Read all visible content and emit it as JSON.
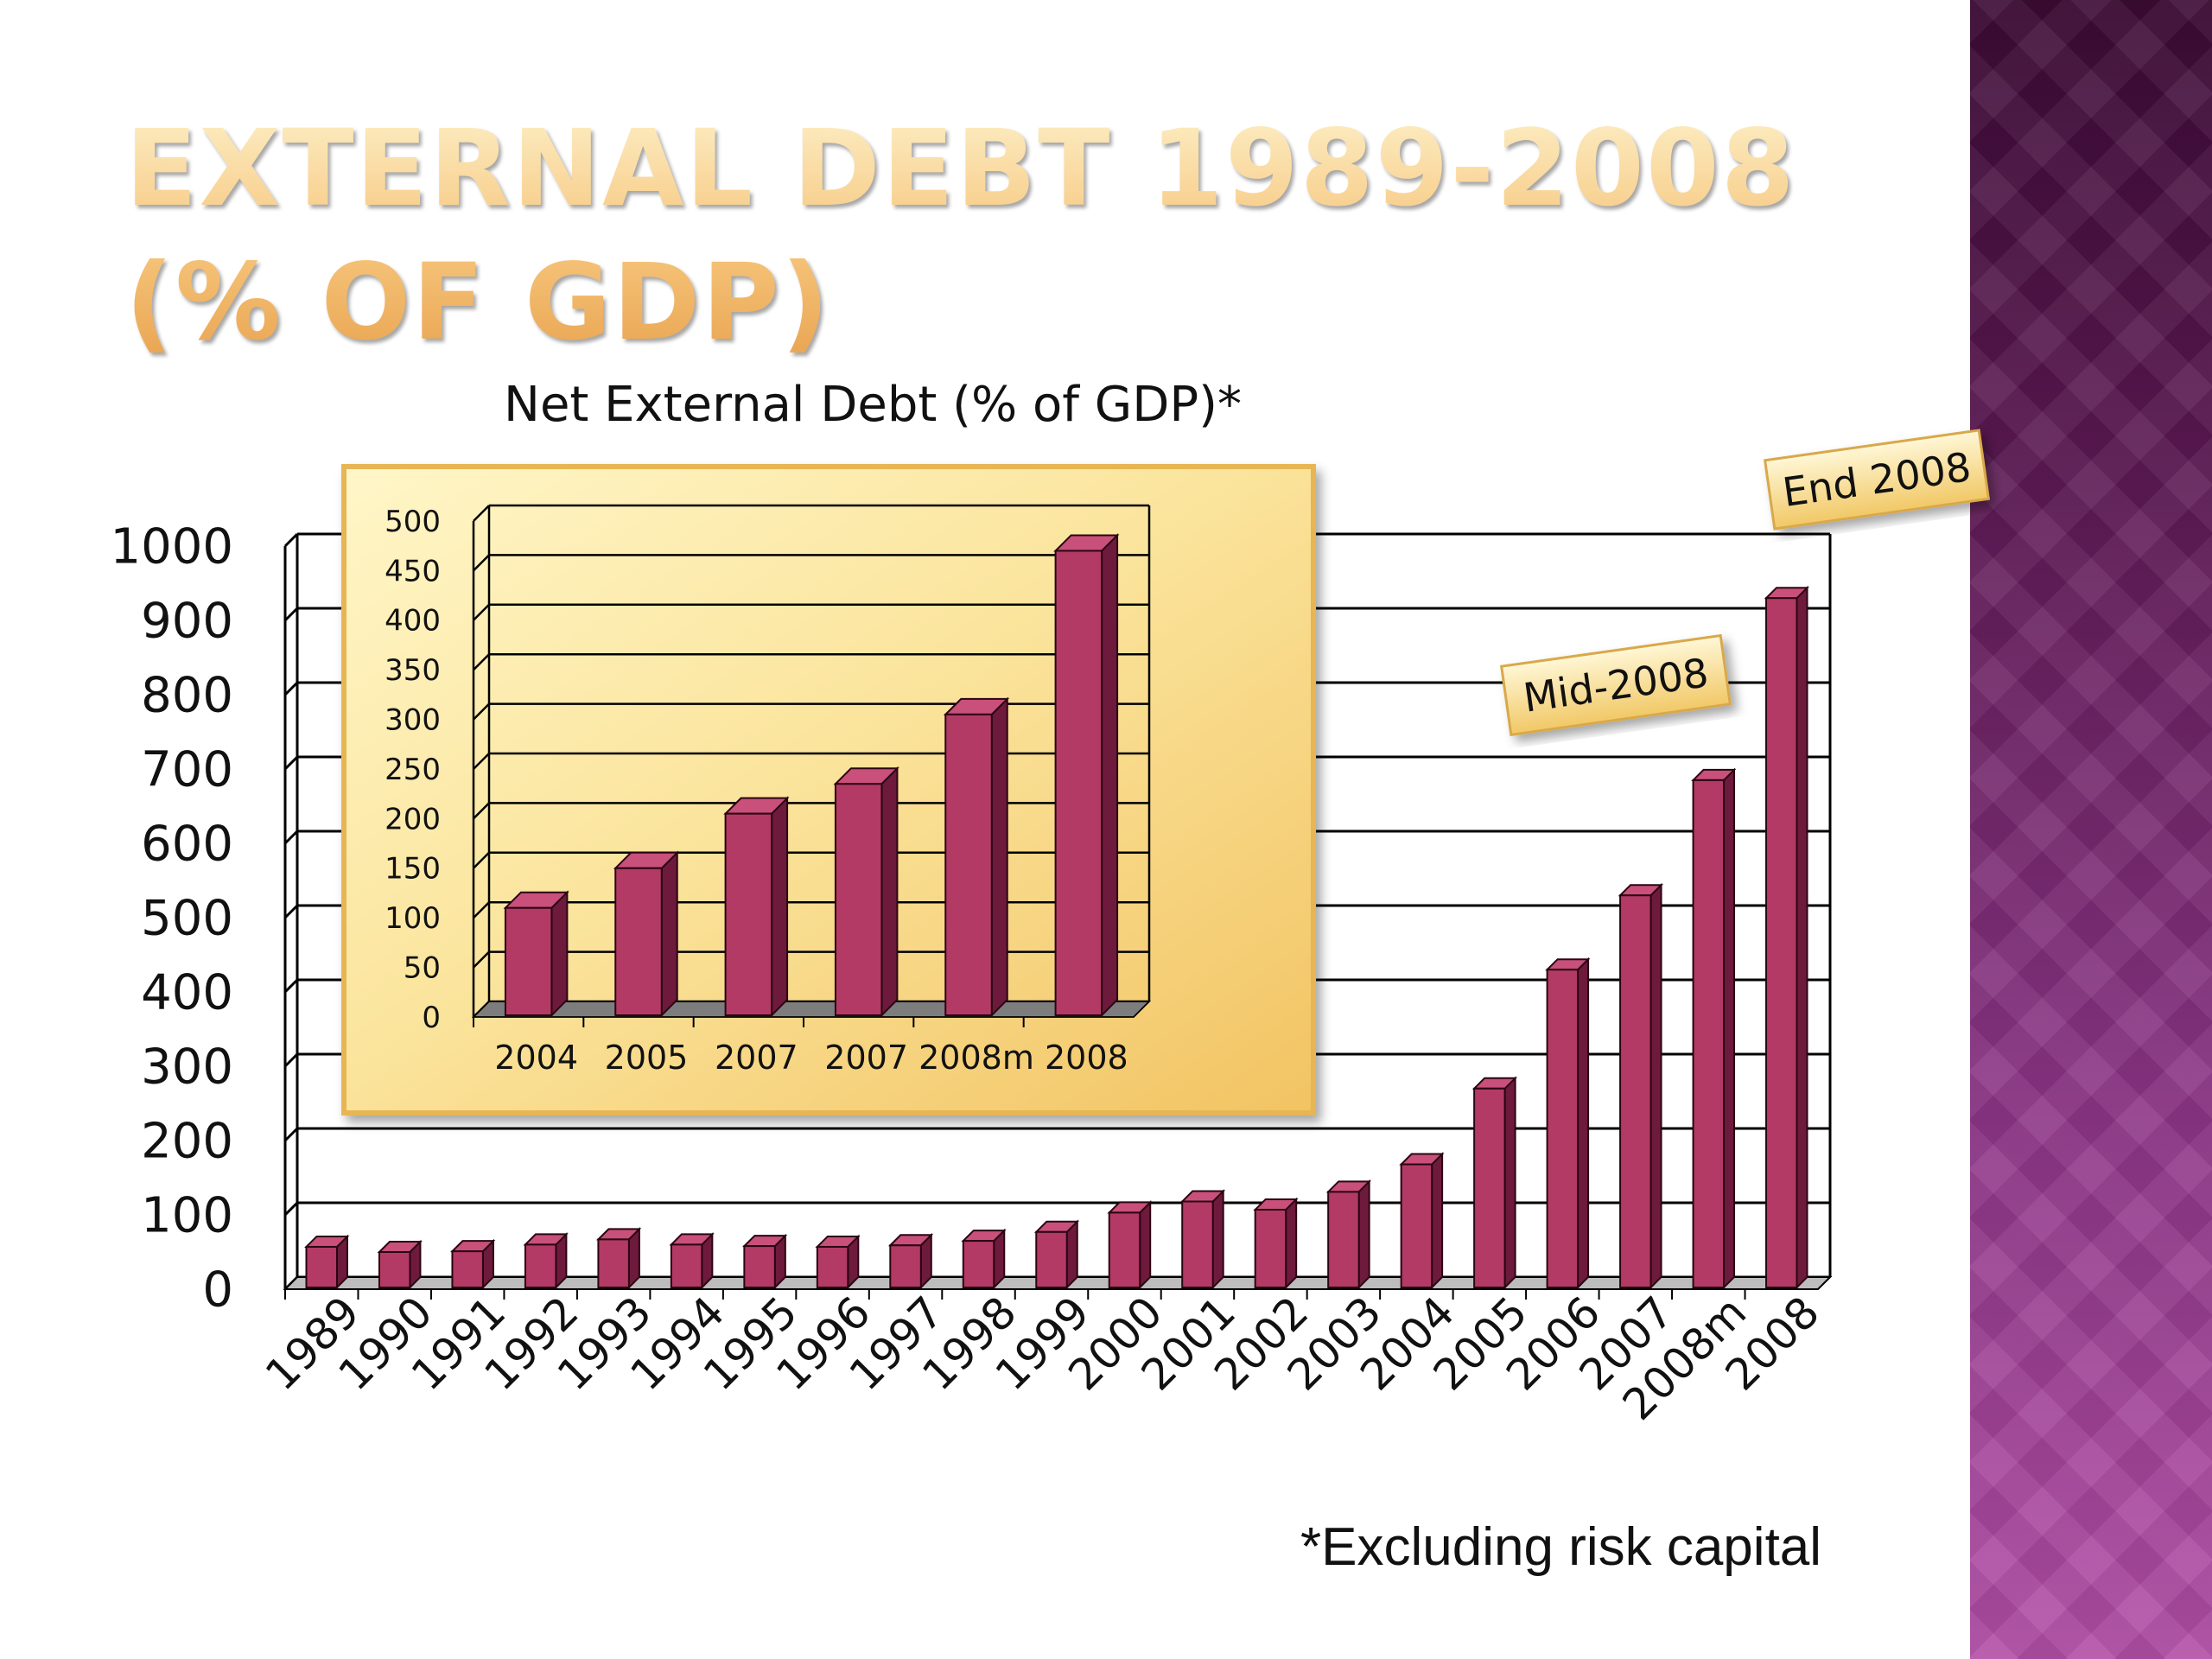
{
  "slide": {
    "title_line1": "External Debt 1989-2008",
    "title_line2": "(% of GDP)",
    "footnote": "*Excluding risk capital"
  },
  "colors": {
    "bar": "#b33a65",
    "bar_side": "#6e1a3c",
    "title": "#f2b96a",
    "panel": "#f7d27a"
  },
  "chart_data": [
    {
      "type": "bar",
      "title": "Net External Debt (% of GDP)*",
      "categories": [
        "1989",
        "1990",
        "1991",
        "1992",
        "1993",
        "1994",
        "1995",
        "1996",
        "1997",
        "1998",
        "1999",
        "2000",
        "2001",
        "2002",
        "2003",
        "2004",
        "2005",
        "2006",
        "2007",
        "2008m",
        "2008"
      ],
      "values": [
        57,
        50,
        51,
        60,
        67,
        60,
        58,
        57,
        59,
        65,
        77,
        103,
        118,
        107,
        131,
        168,
        270,
        430,
        530,
        685,
        930
      ],
      "ylim": [
        0,
        1000
      ],
      "yticks": [
        "0",
        "100",
        "200",
        "300",
        "400",
        "500",
        "600",
        "700",
        "800",
        "900",
        "1000"
      ],
      "grid": true,
      "annotations": [
        "Mid-2008",
        "End 2008"
      ]
    },
    {
      "type": "bar",
      "title": "",
      "categories": [
        "2004",
        "2005",
        "2007",
        "2007",
        "2008m",
        "2008"
      ],
      "values": [
        110,
        150,
        205,
        235,
        305,
        470
      ],
      "ylim": [
        0,
        500
      ],
      "yticks": [
        "0",
        "50",
        "100",
        "150",
        "200",
        "250",
        "300",
        "350",
        "400",
        "450",
        "500"
      ],
      "grid": true
    }
  ]
}
